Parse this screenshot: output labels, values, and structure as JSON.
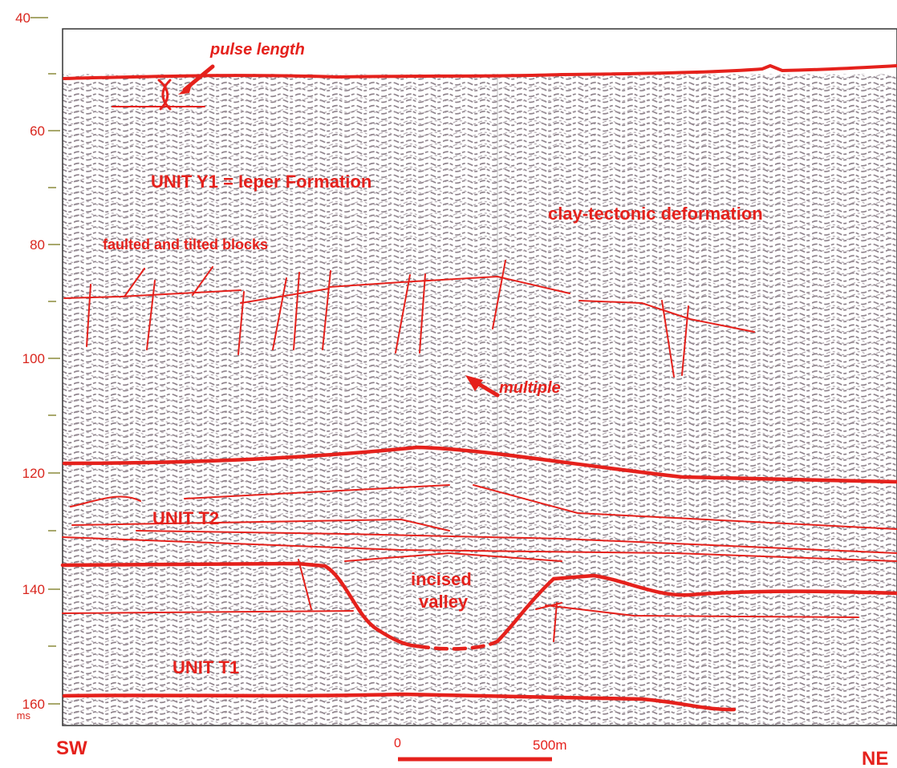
{
  "axis": {
    "ticks": [
      "40",
      "60",
      "80",
      "100",
      "120",
      "140",
      "160"
    ],
    "unit": "ms"
  },
  "annotations": {
    "pulse_length": "pulse length",
    "unit_y1": "UNIT Y1 = Ieper Formation",
    "clay_tectonic": "clay-tectonic deformation",
    "faulted_blocks": "faulted and tilted blocks",
    "multiple": "multiple",
    "unit_t2": "UNIT T2",
    "incised_valley": [
      "incised",
      "valley"
    ],
    "unit_t1": "UNIT T1"
  },
  "orientation": {
    "left": "SW",
    "right": "NE"
  },
  "scale_bar": {
    "start": "0",
    "end": "500m"
  }
}
